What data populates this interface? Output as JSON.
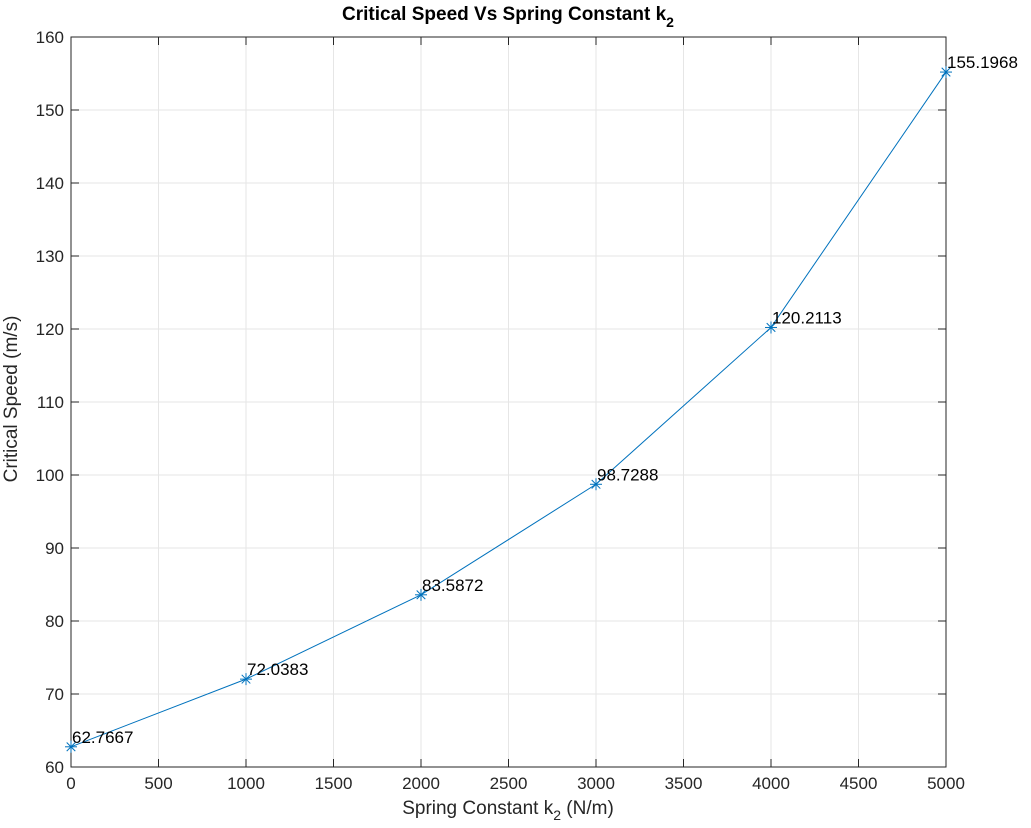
{
  "chart_data": {
    "type": "line",
    "title": "Critical Speed Vs Spring Constant k",
    "title_subscript": "2",
    "xlabel_prefix": "Spring Constant k",
    "xlabel_subscript": "2",
    "xlabel_suffix": " (N/m)",
    "ylabel": "Critical Speed (m/s)",
    "xlim": [
      0,
      5000
    ],
    "ylim": [
      60,
      160
    ],
    "xticks": [
      0,
      500,
      1000,
      1500,
      2000,
      2500,
      3000,
      3500,
      4000,
      4500,
      5000
    ],
    "yticks": [
      60,
      70,
      80,
      90,
      100,
      110,
      120,
      130,
      140,
      150,
      160
    ],
    "grid": true,
    "marker": "asterisk",
    "line_color": "#0072bd",
    "series": [
      {
        "x": [
          0,
          1000,
          2000,
          3000,
          4000,
          5000
        ],
        "y": [
          62.7667,
          72.0383,
          83.5872,
          98.7288,
          120.2113,
          155.1968
        ],
        "point_labels": [
          "62.7667",
          "72.0383",
          "83.5872",
          "98.7288",
          "120.2113",
          "155.1968"
        ]
      }
    ]
  }
}
